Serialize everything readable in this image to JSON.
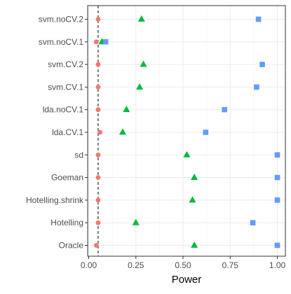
{
  "chart_data": {
    "type": "scatter",
    "title": "",
    "xlabel": "Power",
    "ylabel": "",
    "xlim": [
      0,
      1.02
    ],
    "categories": [
      "svm.noCV.2",
      "svm.noCV.1",
      "svm.CV.2",
      "svm.CV.1",
      "lda.noCV.1",
      "lda.CV.1",
      "sd",
      "Goeman",
      "Hotelling.shrink",
      "Hotelling",
      "Oracle"
    ],
    "x_ticks": [
      0.0,
      0.25,
      0.5,
      0.75,
      1.0
    ],
    "x_tick_labels": [
      "0.00",
      "0.25",
      "0.50",
      "0.75",
      "1.00"
    ],
    "reference_line": {
      "x": 0.05,
      "style": "dashed"
    },
    "grid": true,
    "legend": "none",
    "series": [
      {
        "marker": "circle",
        "color": "#F8766D",
        "values": [
          0.05,
          0.04,
          0.05,
          0.05,
          0.05,
          0.06,
          0.05,
          0.05,
          0.05,
          0.05,
          0.04
        ]
      },
      {
        "marker": "triangle",
        "color": "#00BA38",
        "values": [
          0.28,
          0.07,
          0.29,
          0.27,
          0.2,
          0.18,
          0.52,
          0.56,
          0.55,
          0.25,
          0.56
        ]
      },
      {
        "marker": "square",
        "color": "#619CFF",
        "values": [
          0.9,
          0.09,
          0.92,
          0.89,
          0.72,
          0.62,
          1.0,
          1.0,
          1.0,
          0.87,
          1.0
        ]
      }
    ]
  }
}
